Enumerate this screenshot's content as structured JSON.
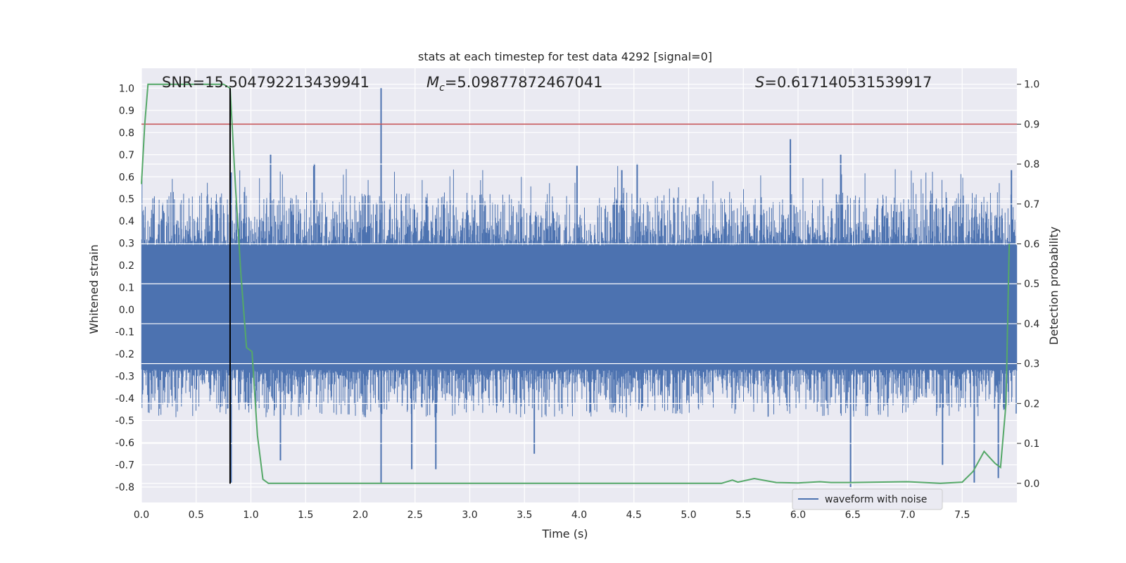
{
  "chart_data": {
    "type": "line",
    "title": "stats at each timestep for test data 4292 [signal=0]",
    "xlabel": "Time (s)",
    "ylabel": "Whitened strain",
    "y2label": "Detection probability",
    "xlim": [
      0.0,
      8.0
    ],
    "ylim": [
      -0.87,
      1.09
    ],
    "y2lim": [
      -0.048,
      1.04
    ],
    "xticks": [
      "0.0",
      "0.5",
      "1.0",
      "1.5",
      "2.0",
      "2.5",
      "3.0",
      "3.5",
      "4.0",
      "4.5",
      "5.0",
      "5.5",
      "6.0",
      "6.5",
      "7.0",
      "7.5"
    ],
    "xtick_values": [
      0.0,
      0.5,
      1.0,
      1.5,
      2.0,
      2.5,
      3.0,
      3.5,
      4.0,
      4.5,
      5.0,
      5.5,
      6.0,
      6.5,
      7.0,
      7.5
    ],
    "yticks": [
      "1.0",
      "0.9",
      "0.8",
      "0.7",
      "0.6",
      "0.5",
      "0.4",
      "0.3",
      "0.2",
      "0.1",
      "0.0",
      "-0.1",
      "-0.2",
      "-0.3",
      "-0.4",
      "-0.5",
      "-0.6",
      "-0.7",
      "-0.8"
    ],
    "ytick_values": [
      1.0,
      0.9,
      0.8,
      0.7,
      0.6,
      0.5,
      0.4,
      0.3,
      0.2,
      0.1,
      0.0,
      -0.1,
      -0.2,
      -0.3,
      -0.4,
      -0.5,
      -0.6,
      -0.7,
      -0.8
    ],
    "y2ticks": [
      "1.0",
      "0.9",
      "0.8",
      "0.7",
      "0.6",
      "0.5",
      "0.4",
      "0.3",
      "0.2",
      "0.1",
      "0.0"
    ],
    "y2tick_values": [
      1.0,
      0.9,
      0.8,
      0.7,
      0.6,
      0.5,
      0.4,
      0.3,
      0.2,
      0.1,
      0.0
    ],
    "grid": true,
    "legend_position": "lower-right",
    "annotations": {
      "snr": "SNR=15.504792213439941",
      "mc_symbol": "M",
      "mc_sub": "c",
      "mc_value": "=5.09877872467041",
      "s_symbol": "S",
      "s_value": "=0.617140531539917"
    },
    "threshold": {
      "value": 0.9,
      "axis": "y2",
      "color": "#c44e52"
    },
    "marker_line": {
      "x": 0.81,
      "color": "#000000"
    },
    "series": [
      {
        "name": "waveform with noise",
        "color": "#4c72b0",
        "axis": "y",
        "description_free": true,
        "bulk_range": [
          -0.27,
          0.29
        ],
        "typical_range": [
          -0.45,
          0.5
        ],
        "spikes": [
          [
            0.82,
            0.62
          ],
          [
            0.82,
            -0.78
          ],
          [
            1.18,
            0.7
          ],
          [
            1.27,
            -0.68
          ],
          [
            1.58,
            0.66
          ],
          [
            2.19,
            1.0
          ],
          [
            2.19,
            -0.78
          ],
          [
            2.47,
            -0.72
          ],
          [
            2.69,
            -0.72
          ],
          [
            3.59,
            -0.65
          ],
          [
            3.98,
            0.65
          ],
          [
            4.39,
            0.63
          ],
          [
            4.53,
            0.66
          ],
          [
            5.93,
            0.77
          ],
          [
            6.39,
            0.7
          ],
          [
            6.48,
            -0.8
          ],
          [
            7.32,
            -0.7
          ],
          [
            7.61,
            -0.78
          ],
          [
            7.83,
            -0.76
          ],
          [
            7.95,
            0.63
          ]
        ]
      },
      {
        "name": "",
        "color": "#55a868",
        "axis": "y2",
        "x": [
          0.0,
          0.03,
          0.06,
          0.1,
          0.2,
          0.3,
          0.4,
          0.5,
          0.6,
          0.7,
          0.75,
          0.81,
          0.86,
          0.91,
          0.96,
          1.01,
          1.06,
          1.11,
          1.16,
          1.3,
          1.5,
          1.8,
          2.0,
          2.3,
          2.6,
          2.9,
          3.2,
          3.4,
          3.6,
          3.8,
          4.0,
          4.3,
          4.6,
          5.0,
          5.3,
          5.4,
          5.45,
          5.6,
          5.8,
          6.0,
          6.2,
          6.3,
          6.5,
          7.0,
          7.3,
          7.5,
          7.6,
          7.65,
          7.7,
          7.75,
          7.8,
          7.85,
          7.9,
          7.93
        ],
        "y": [
          0.75,
          0.9,
          1.0,
          1.0,
          1.0,
          1.0,
          1.0,
          1.0,
          1.0,
          1.0,
          1.0,
          0.99,
          0.74,
          0.52,
          0.34,
          0.33,
          0.12,
          0.01,
          0.0,
          0.0,
          0.0,
          0.0,
          0.0,
          0.0,
          0.0,
          0.0,
          0.0,
          0.0,
          0.0,
          0.0,
          0.0,
          0.0,
          0.0,
          0.0,
          0.0,
          0.008,
          0.003,
          0.012,
          0.002,
          0.001,
          0.004,
          0.002,
          0.002,
          0.004,
          0.0,
          0.003,
          0.03,
          0.055,
          0.08,
          0.065,
          0.05,
          0.04,
          0.2,
          0.6
        ]
      }
    ]
  }
}
